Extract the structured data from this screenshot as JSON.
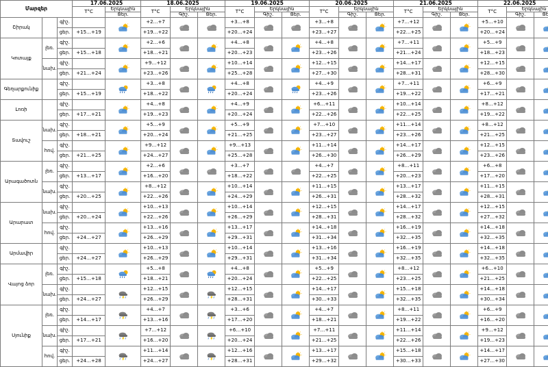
{
  "table": {
    "title": "Մարզեր",
    "dates": [
      "17.06.2025",
      "18.06.2025",
      "19.06.2025",
      "20.06.2025",
      "21.06.2025",
      "22.06.2025"
    ],
    "t_label": "T°C",
    "sky_label": "Երկնային",
    "sky_day": "Ցեր.",
    "sky_night": "Գիշ."
  },
  "icons": {
    "sunny": "sun-icon",
    "partly_cloudy": "partly-cloudy-icon",
    "cloudy": "cloud-icon",
    "rain_sun": "sun-rain-icon",
    "thunder_rain": "thunderstorm-rain-icon"
  },
  "regions": [
    {
      "name": "Շիրակ",
      "rows": [
        {
          "sub": "",
          "part": "գիշ.",
          "t0": "",
          "d1": "+2…+7",
          "n1": "cloudy",
          "d1i": "cloudy",
          "d2": "+3…+8",
          "n2": "cloudy",
          "d2i": "cloudy",
          "d3": "+3…+8",
          "n3": "cloudy",
          "d3i": "partly_cloudy",
          "d4": "+7…+12",
          "n4": "cloudy",
          "d4i": "partly_cloudy",
          "d5": "+5…+10",
          "n5": "cloudy",
          "d5i": "partly_cloudy"
        },
        {
          "sub": "",
          "part": "ցեր.",
          "t0": "+15…+19",
          "d1": "+19…+22",
          "n1": "",
          "d1i": "",
          "d2": "+20…+24",
          "n2": "",
          "d2i": "",
          "d3": "+23…+27",
          "n3": "",
          "d3i": "",
          "d4": "+22…+25",
          "n4": "",
          "d4i": "",
          "d5": "+20…+24",
          "n5": "",
          "d5i": ""
        }
      ]
    },
    {
      "name": "Կոտայք",
      "rows": [
        {
          "sub": "լեռ.",
          "part": "գիշ.",
          "t0": "",
          "d1": "+2…+6",
          "n1": "cloudy",
          "d1i": "partly_cloudy",
          "d2": "+4…+8",
          "n2": "cloudy",
          "d2i": "partly_cloudy",
          "d3": "+4…+8",
          "n3": "cloudy",
          "d3i": "partly_cloudy",
          "d4": "+7…+11",
          "n4": "cloudy",
          "d4i": "partly_cloudy",
          "d5": "+5…+9",
          "n5": "cloudy",
          "d5i": "partly_cloudy"
        },
        {
          "sub": "",
          "part": "ցեր.",
          "t0": "+15…+18",
          "d1": "+18…+21",
          "n1": "",
          "d1i": "",
          "d2": "+20…+23",
          "n2": "",
          "d2i": "",
          "d3": "+23…+26",
          "n3": "",
          "d3i": "",
          "d4": "+21…+24",
          "n4": "",
          "d4i": "",
          "d5": "+18…+23",
          "n5": "",
          "d5i": ""
        },
        {
          "sub": "նախ.",
          "part": "գիշ.",
          "t0": "",
          "d1": "+9…+12",
          "n1": "cloudy",
          "d1i": "partly_cloudy",
          "d2": "+10…+14",
          "n2": "cloudy",
          "d2i": "partly_cloudy",
          "d3": "+12…+15",
          "n3": "cloudy",
          "d3i": "partly_cloudy",
          "d4": "+14…+17",
          "n4": "cloudy",
          "d4i": "partly_cloudy",
          "d5": "+12…+15",
          "n5": "cloudy",
          "d5i": "partly_cloudy"
        },
        {
          "sub": "",
          "part": "ցեր.",
          "t0": "+21…+24",
          "d1": "+23…+26",
          "n1": "",
          "d1i": "",
          "d2": "+25…+28",
          "n2": "",
          "d2i": "",
          "d3": "+27…+30",
          "n3": "",
          "d3i": "",
          "d4": "+28…+31",
          "n4": "",
          "d4i": "",
          "d5": "+28…+30",
          "n5": "",
          "d5i": ""
        }
      ]
    },
    {
      "name": "Գեղարքունիք",
      "rows": [
        {
          "sub": "",
          "part": "գիշ.",
          "t0": "",
          "d1": "+3…+8",
          "n1": "cloudy",
          "d1i": "rain_sun",
          "d2": "+4…+8",
          "n2": "cloudy",
          "d2i": "rain_sun",
          "d3": "+4…+9",
          "n3": "cloudy",
          "d3i": "partly_cloudy",
          "d4": "+7…+11",
          "n4": "cloudy",
          "d4i": "partly_cloudy",
          "d5": "+6…+9",
          "n5": "cloudy",
          "d5i": "partly_cloudy"
        },
        {
          "sub": "",
          "part": "ցեր.",
          "t0": "+15…+19",
          "d1": "+18…+22",
          "n1": "",
          "d1i": "",
          "d2": "+20…+24",
          "n2": "",
          "d2i": "",
          "d3": "+23…+26",
          "n3": "",
          "d3i": "",
          "d4": "+19…+22",
          "n4": "",
          "d4i": "",
          "d5": "+17…+21",
          "n5": "",
          "d5i": ""
        }
      ]
    },
    {
      "name": "Լոռի",
      "rows": [
        {
          "sub": "",
          "part": "գիշ.",
          "t0": "",
          "d1": "+4…+8",
          "n1": "cloudy",
          "d1i": "partly_cloudy",
          "d2": "+4…+9",
          "n2": "cloudy",
          "d2i": "partly_cloudy",
          "d3": "+6…+11",
          "n3": "cloudy",
          "d3i": "partly_cloudy",
          "d4": "+10…+14",
          "n4": "cloudy",
          "d4i": "partly_cloudy",
          "d5": "+8…+12",
          "n5": "cloudy",
          "d5i": "partly_cloudy"
        },
        {
          "sub": "",
          "part": "ցեր.",
          "t0": "+17…+21",
          "d1": "+19…+23",
          "n1": "",
          "d1i": "",
          "d2": "+20…+24",
          "n2": "",
          "d2i": "",
          "d3": "+22…+26",
          "n3": "",
          "d3i": "",
          "d4": "+22…+25",
          "n4": "",
          "d4i": "",
          "d5": "+19…+22",
          "n5": "",
          "d5i": ""
        }
      ]
    },
    {
      "name": "Տավուշ",
      "rows": [
        {
          "sub": "նախ.",
          "part": "գիշ.",
          "t0": "",
          "d1": "+5…+9",
          "n1": "cloudy",
          "d1i": "partly_cloudy",
          "d2": "+5…+9",
          "n2": "cloudy",
          "d2i": "partly_cloudy",
          "d3": "+7…+10",
          "n3": "cloudy",
          "d3i": "partly_cloudy",
          "d4": "+11…+14",
          "n4": "cloudy",
          "d4i": "partly_cloudy",
          "d5": "+8…+12",
          "n5": "cloudy",
          "d5i": "partly_cloudy"
        },
        {
          "sub": "",
          "part": "ցեր.",
          "t0": "+18…+21",
          "d1": "+20…+24",
          "n1": "",
          "d1i": "",
          "d2": "+21…+25",
          "n2": "",
          "d2i": "",
          "d3": "+23…+27",
          "n3": "",
          "d3i": "",
          "d4": "+23…+26",
          "n4": "",
          "d4i": "",
          "d5": "+21…+25",
          "n5": "",
          "d5i": ""
        },
        {
          "sub": "հով.",
          "part": "գիշ.",
          "t0": "",
          "d1": "+9…+12",
          "n1": "cloudy",
          "d1i": "partly_cloudy",
          "d2": "+9…+13",
          "n2": "cloudy",
          "d2i": "partly_cloudy",
          "d3": "+11…+14",
          "n3": "cloudy",
          "d3i": "partly_cloudy",
          "d4": "+14…+17",
          "n4": "cloudy",
          "d4i": "partly_cloudy",
          "d5": "+12…+15",
          "n5": "cloudy",
          "d5i": "partly_cloudy"
        },
        {
          "sub": "",
          "part": "ցեր.",
          "t0": "+21…+25",
          "d1": "+24…+27",
          "n1": "",
          "d1i": "",
          "d2": "+25…+28",
          "n2": "",
          "d2i": "",
          "d3": "+26…+30",
          "n3": "",
          "d3i": "",
          "d4": "+26…+29",
          "n4": "",
          "d4i": "",
          "d5": "+23…+26",
          "n5": "",
          "d5i": ""
        }
      ]
    },
    {
      "name": "Արագածոտն",
      "rows": [
        {
          "sub": "լեռ.",
          "part": "գիշ.",
          "t0": "",
          "d1": "+2…+6",
          "n1": "cloudy",
          "d1i": "cloudy",
          "d2": "+3…+7",
          "n2": "cloudy",
          "d2i": "cloudy",
          "d3": "+4…+7",
          "n3": "cloudy",
          "d3i": "partly_cloudy",
          "d4": "+8…+11",
          "n4": "cloudy",
          "d4i": "partly_cloudy",
          "d5": "+6…+8",
          "n5": "cloudy",
          "d5i": "partly_cloudy"
        },
        {
          "sub": "",
          "part": "ցեր.",
          "t0": "+13…+17",
          "d1": "+16…+20",
          "n1": "",
          "d1i": "",
          "d2": "+18…+22",
          "n2": "",
          "d2i": "",
          "d3": "+22…+25",
          "n3": "",
          "d3i": "",
          "d4": "+20…+23",
          "n4": "",
          "d4i": "",
          "d5": "+17…+20",
          "n5": "",
          "d5i": ""
        },
        {
          "sub": "նախ.",
          "part": "գիշ.",
          "t0": "",
          "d1": "+8…+12",
          "n1": "cloudy",
          "d1i": "partly_cloudy",
          "d2": "+10…+14",
          "n2": "cloudy",
          "d2i": "partly_cloudy",
          "d3": "+11…+15",
          "n3": "cloudy",
          "d3i": "partly_cloudy",
          "d4": "+13…+17",
          "n4": "cloudy",
          "d4i": "partly_cloudy",
          "d5": "+11…+15",
          "n5": "cloudy",
          "d5i": "partly_cloudy"
        },
        {
          "sub": "",
          "part": "ցեր.",
          "t0": "+20…+25",
          "d1": "+22…+26",
          "n1": "",
          "d1i": "",
          "d2": "+24…+29",
          "n2": "",
          "d2i": "",
          "d3": "+26…+31",
          "n3": "",
          "d3i": "",
          "d4": "+28…+32",
          "n4": "",
          "d4i": "",
          "d5": "+28…+31",
          "n5": "",
          "d5i": ""
        }
      ]
    },
    {
      "name": "Արարատ",
      "rows": [
        {
          "sub": "նախ.",
          "part": "գիշ.",
          "t0": "",
          "d1": "+10…+13",
          "n1": "cloudy",
          "d1i": "partly_cloudy",
          "d2": "+10…+14",
          "n2": "cloudy",
          "d2i": "partly_cloudy",
          "d3": "+12…+15",
          "n3": "cloudy",
          "d3i": "partly_cloudy",
          "d4": "+14…+17",
          "n4": "cloudy",
          "d4i": "partly_cloudy",
          "d5": "+12…+15",
          "n5": "cloudy",
          "d5i": "partly_cloudy"
        },
        {
          "sub": "",
          "part": "ցեր.",
          "t0": "+20…+24",
          "d1": "+22…+26",
          "n1": "",
          "d1i": "",
          "d2": "+26…+29",
          "n2": "",
          "d2i": "",
          "d3": "+28…+31",
          "n3": "",
          "d3i": "",
          "d4": "+28…+32",
          "n4": "",
          "d4i": "",
          "d5": "+27…+32",
          "n5": "",
          "d5i": ""
        },
        {
          "sub": "հով.",
          "part": "գիշ.",
          "t0": "",
          "d1": "+13…+16",
          "n1": "cloudy",
          "d1i": "partly_cloudy",
          "d2": "+13…+17",
          "n2": "cloudy",
          "d2i": "partly_cloudy",
          "d3": "+14…+18",
          "n3": "cloudy",
          "d3i": "partly_cloudy",
          "d4": "+16…+19",
          "n4": "cloudy",
          "d4i": "partly_cloudy",
          "d5": "+14…+18",
          "n5": "cloudy",
          "d5i": "partly_cloudy"
        },
        {
          "sub": "",
          "part": "ցեր.",
          "t0": "+24…+27",
          "d1": "+26…+29",
          "n1": "",
          "d1i": "",
          "d2": "+29…+31",
          "n2": "",
          "d2i": "",
          "d3": "+31…+34",
          "n3": "",
          "d3i": "",
          "d4": "+32…+35",
          "n4": "",
          "d4i": "",
          "d5": "+32…+35",
          "n5": "",
          "d5i": ""
        }
      ]
    },
    {
      "name": "Արմավիր",
      "rows": [
        {
          "sub": "",
          "part": "գիշ.",
          "t0": "",
          "d1": "+10…+13",
          "n1": "cloudy",
          "d1i": "partly_cloudy",
          "d2": "+10…+14",
          "n2": "cloudy",
          "d2i": "partly_cloudy",
          "d3": "+13…+16",
          "n3": "cloudy",
          "d3i": "partly_cloudy",
          "d4": "+16…+19",
          "n4": "cloudy",
          "d4i": "partly_cloudy",
          "d5": "+14…+18",
          "n5": "cloudy",
          "d5i": "partly_cloudy"
        },
        {
          "sub": "",
          "part": "ցեր.",
          "t0": "+24…+27",
          "d1": "+26…+29",
          "n1": "",
          "d1i": "",
          "d2": "+29…+31",
          "n2": "",
          "d2i": "",
          "d3": "+31…+34",
          "n3": "",
          "d3i": "",
          "d4": "+32…+35",
          "n4": "",
          "d4i": "",
          "d5": "+32…+35",
          "n5": "",
          "d5i": ""
        }
      ]
    },
    {
      "name": "Վայոց ձոր",
      "rows": [
        {
          "sub": "լեռ.",
          "part": "գիշ.",
          "t0": "",
          "d1": "+5…+8",
          "n1": "cloudy",
          "d1i": "rain_sun",
          "d2": "+4…+8",
          "n2": "cloudy",
          "d2i": "partly_cloudy",
          "d3": "+5…+9",
          "n3": "cloudy",
          "d3i": "partly_cloudy",
          "d4": "+8…+12",
          "n4": "cloudy",
          "d4i": "partly_cloudy",
          "d5": "+6…+10",
          "n5": "cloudy",
          "d5i": "partly_cloudy"
        },
        {
          "sub": "",
          "part": "ցեր.",
          "t0": "+15…+18",
          "d1": "+18…+21",
          "n1": "",
          "d1i": "",
          "d2": "+20…+24",
          "n2": "",
          "d2i": "",
          "d3": "+22…+25",
          "n3": "",
          "d3i": "",
          "d4": "+23…+25",
          "n4": "",
          "d4i": "",
          "d5": "+21…+25",
          "n5": "",
          "d5i": ""
        },
        {
          "sub": "նախ.",
          "part": "գիշ.",
          "t0": "",
          "d1": "+12…+15",
          "n1": "cloudy",
          "d1i": "thunder_rain",
          "d2": "+12…+15",
          "n2": "cloudy",
          "d2i": "partly_cloudy",
          "d3": "+14…+17",
          "n3": "cloudy",
          "d3i": "partly_cloudy",
          "d4": "+15…+18",
          "n4": "cloudy",
          "d4i": "partly_cloudy",
          "d5": "+14…+18",
          "n5": "cloudy",
          "d5i": "partly_cloudy"
        },
        {
          "sub": "",
          "part": "ցեր.",
          "t0": "+24…+27",
          "d1": "+26…+29",
          "n1": "",
          "d1i": "",
          "d2": "+28…+31",
          "n2": "",
          "d2i": "",
          "d3": "+30…+33",
          "n3": "",
          "d3i": "",
          "d4": "+32…+35",
          "n4": "",
          "d4i": "",
          "d5": "+30…+34",
          "n5": "",
          "d5i": ""
        }
      ]
    },
    {
      "name": "Սյունիք",
      "rows": [
        {
          "sub": "լեռ.",
          "part": "գիշ.",
          "t0": "",
          "d1": "+4…+7",
          "n1": "cloudy",
          "d1i": "thunder_rain",
          "d2": "+3…+6",
          "n2": "cloudy",
          "d2i": "partly_cloudy",
          "d3": "+4…+7",
          "n3": "cloudy",
          "d3i": "partly_cloudy",
          "d4": "+8…+11",
          "n4": "cloudy",
          "d4i": "partly_cloudy",
          "d5": "+6…+9",
          "n5": "cloudy",
          "d5i": "partly_cloudy"
        },
        {
          "sub": "",
          "part": "ցեր.",
          "t0": "+14…+17",
          "d1": "+13…+16",
          "n1": "",
          "d1i": "",
          "d2": "+17…+20",
          "n2": "",
          "d2i": "",
          "d3": "+18…+21",
          "n3": "",
          "d3i": "",
          "d4": "+19…+22",
          "n4": "",
          "d4i": "",
          "d5": "+16…+20",
          "n5": "",
          "d5i": ""
        },
        {
          "sub": "նախ.",
          "part": "գիշ.",
          "t0": "",
          "d1": "+7…+12",
          "n1": "cloudy",
          "d1i": "thunder_rain",
          "d2": "+6…+10",
          "n2": "cloudy",
          "d2i": "partly_cloudy",
          "d3": "+7…+11",
          "n3": "cloudy",
          "d3i": "partly_cloudy",
          "d4": "+11…+14",
          "n4": "cloudy",
          "d4i": "partly_cloudy",
          "d5": "+9…+12",
          "n5": "cloudy",
          "d5i": "partly_cloudy"
        },
        {
          "sub": "",
          "part": "ցեր.",
          "t0": "+17…+21",
          "d1": "+16…+20",
          "n1": "",
          "d1i": "",
          "d2": "+20…+24",
          "n2": "",
          "d2i": "",
          "d3": "+21…+25",
          "n3": "",
          "d3i": "",
          "d4": "+22…+26",
          "n4": "",
          "d4i": "",
          "d5": "+19…+23",
          "n5": "",
          "d5i": ""
        },
        {
          "sub": "հով.",
          "part": "գիշ.",
          "t0": "",
          "d1": "+11…+14",
          "n1": "cloudy",
          "d1i": "thunder_rain",
          "d2": "+12…+16",
          "n2": "cloudy",
          "d2i": "partly_cloudy",
          "d3": "+13…+17",
          "n3": "cloudy",
          "d3i": "partly_cloudy",
          "d4": "+15…+18",
          "n4": "cloudy",
          "d4i": "partly_cloudy",
          "d5": "+14…+17",
          "n5": "cloudy",
          "d5i": "partly_cloudy"
        },
        {
          "sub": "",
          "part": "ցեր.",
          "t0": "+24…+28",
          "d1": "+24…+27",
          "n1": "",
          "d1i": "",
          "d2": "+28…+31",
          "n2": "",
          "d2i": "",
          "d3": "+29…+32",
          "n3": "",
          "d3i": "",
          "d4": "+30…+33",
          "n4": "",
          "d4i": "",
          "d5": "+27…+30",
          "n5": "",
          "d5i": ""
        }
      ]
    }
  ]
}
